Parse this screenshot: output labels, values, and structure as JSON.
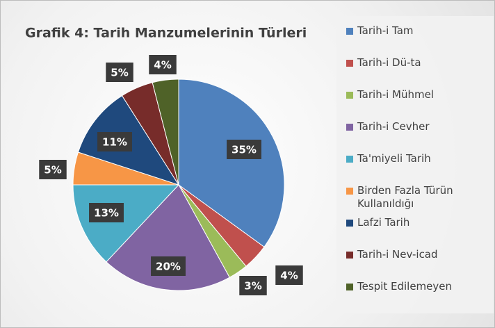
{
  "chart_data": {
    "type": "pie",
    "title": "Grafik 4: Tarih Manzumelerinin Türleri",
    "categories": [
      "Tarih-i Tam",
      "Tarih-i Dü-ta",
      "Tarih-i Mühmel",
      "Tarih-i Cevher",
      "Ta'miyeli Tarih",
      "Birden Fazla Türün Kullanıldığı",
      "Lafzi Tarih",
      "Tarih-i Nev-icad",
      "Tespit Edilemeyen"
    ],
    "values": [
      35,
      4,
      3,
      20,
      13,
      5,
      11,
      5,
      4
    ],
    "value_labels": [
      "35%",
      "4%",
      "3%",
      "20%",
      "13%",
      "5%",
      "11%",
      "5%",
      "4%"
    ],
    "colors": [
      "#4f81bd",
      "#c0504d",
      "#9bbb59",
      "#8064a2",
      "#4bacc6",
      "#f79646",
      "#1f497d",
      "#772c2a",
      "#4f6228"
    ],
    "legend": "right"
  }
}
